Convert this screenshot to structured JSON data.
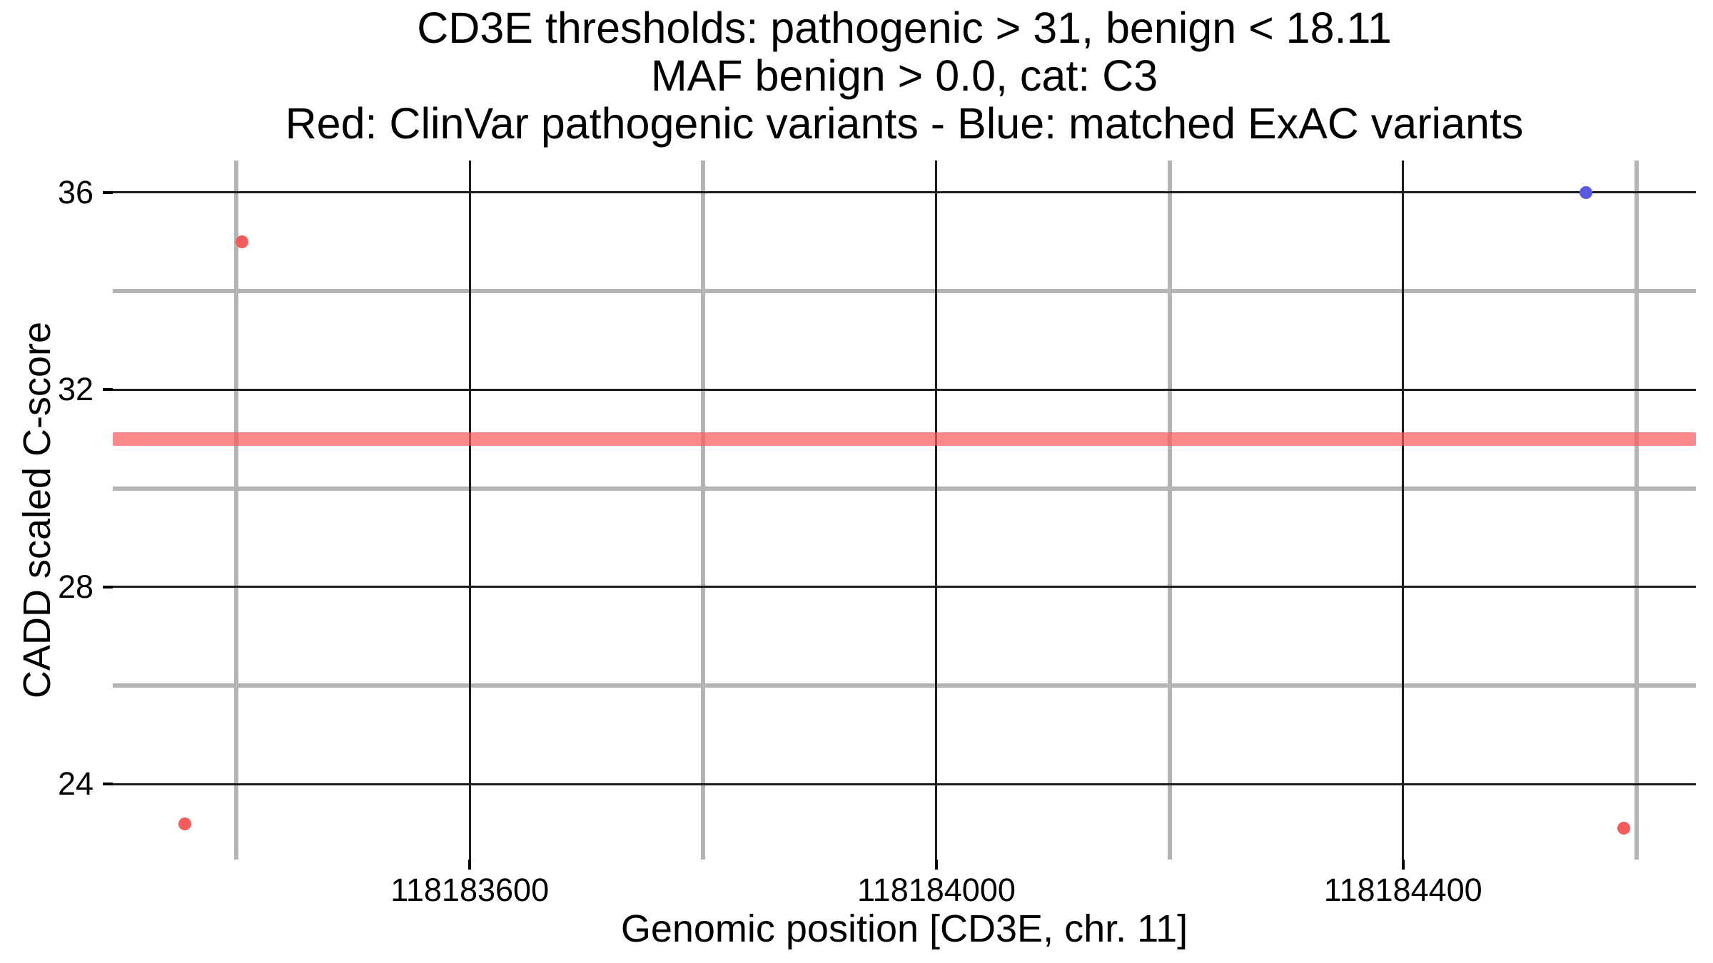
{
  "title": {
    "line1": "CD3E thresholds: pathogenic > 31, benign < 18.11",
    "line2": "MAF benign > 0.0, cat: C3",
    "line3": "Red: ClinVar pathogenic variants - Blue: matched ExAC variants"
  },
  "x_axis": {
    "label": "Genomic position [CD3E, chr. 11]",
    "tick_labels": [
      "118183600",
      "118184000",
      "118184400"
    ]
  },
  "y_axis": {
    "label": "CADD scaled C-score",
    "tick_labels": [
      "36",
      "32",
      "28",
      "24"
    ]
  },
  "colors": {
    "pathogenic_red": "#f25c5c",
    "exac_blue": "#5a5ae0",
    "threshold_red": "#f65c5e",
    "grid_major": "#1c1c1c",
    "grid_minor": "#b4b4b4",
    "text": "#000000",
    "background": "#ffffff"
  },
  "chart_data": {
    "type": "scatter",
    "title": "CD3E thresholds: pathogenic > 31, benign < 18.11 / MAF benign > 0.0, cat: C3 / Red: ClinVar pathogenic variants - Blue: matched ExAC variants",
    "xlabel": "Genomic position [CD3E, chr. 11]",
    "ylabel": "CADD scaled C-score",
    "xlim": [
      118183294,
      118184651
    ],
    "ylim": [
      22.47,
      36.65
    ],
    "grid": {
      "major_x": [
        118183600,
        118184000,
        118184400
      ],
      "minor_x": [
        118183400,
        118183800,
        118184200,
        118184600
      ],
      "major_y": [
        36,
        32,
        28,
        24
      ],
      "minor_y": [
        34,
        30,
        26
      ]
    },
    "x_tick_values": [
      118183600,
      118184000,
      118184400
    ],
    "y_tick_values": [
      36,
      32,
      28,
      24
    ],
    "series": [
      {
        "name": "ClinVar pathogenic variants",
        "color": "#f25c5c",
        "points": [
          {
            "x": 118183405,
            "y": 35.0
          },
          {
            "x": 118183356,
            "y": 23.2
          },
          {
            "x": 118184589,
            "y": 23.1
          }
        ]
      },
      {
        "name": "matched ExAC variants",
        "color": "#5a5ae0",
        "points": [
          {
            "x": 118184557,
            "y": 36.0
          }
        ]
      }
    ],
    "threshold_line": {
      "y": 31,
      "color": "#f65c5e",
      "meaning": "pathogenic threshold"
    },
    "legend": "none",
    "grid_on": true
  }
}
